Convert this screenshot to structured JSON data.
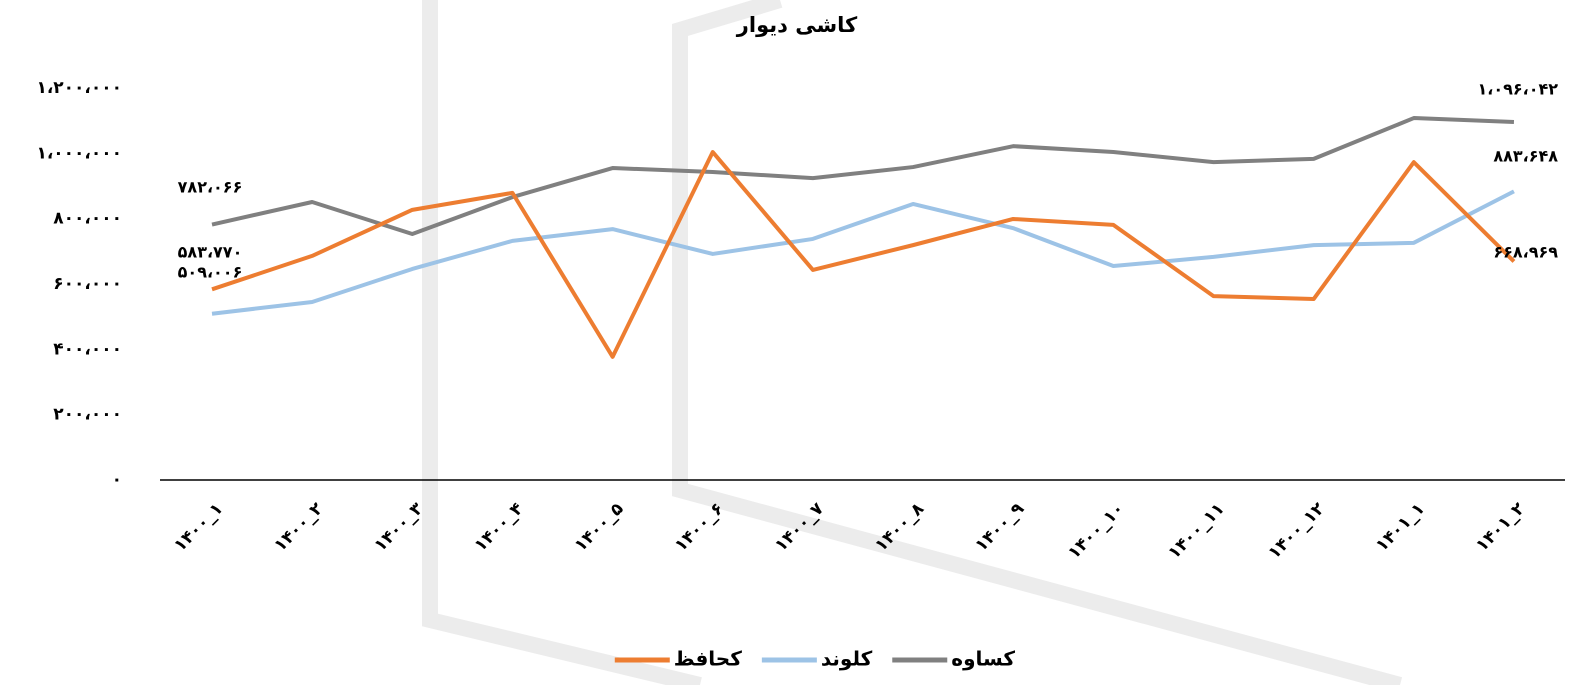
{
  "chart_data": {
    "type": "line",
    "title": "کاشی دیوار",
    "categories": [
      "۱۴۰۰_۱",
      "۱۴۰۰_۲",
      "۱۴۰۰_۳",
      "۱۴۰۰_۴",
      "۱۴۰۰_۵",
      "۱۴۰۰_۶",
      "۱۴۰۰_۷",
      "۱۴۰۰_۸",
      "۱۴۰۰_۹",
      "۱۴۰۰_۱۰",
      "۱۴۰۰_۱۱",
      "۱۴۰۰_۱۲",
      "۱۴۰۱_۱",
      "۱۴۰۱_۲"
    ],
    "series": [
      {
        "name": "کساوه",
        "color": "#808080",
        "values": [
          782066,
          851000,
          753000,
          866000,
          955000,
          943000,
          924000,
          958000,
          1022000,
          1004000,
          973000,
          983000,
          1108000,
          1096042
        ],
        "value_labels": [
          "۷۸۲،۰۶۶",
          null,
          null,
          null,
          null,
          null,
          null,
          null,
          null,
          null,
          null,
          null,
          null,
          "۱،۰۹۶،۰۴۲"
        ]
      },
      {
        "name": "کلوند",
        "color": "#9dc3e6",
        "values": [
          509006,
          545000,
          646000,
          732000,
          768000,
          692000,
          738000,
          845000,
          771000,
          655000,
          683000,
          719000,
          726000,
          883648
        ],
        "value_labels": [
          "۵۰۹،۰۰۶",
          null,
          null,
          null,
          null,
          null,
          null,
          null,
          null,
          null,
          null,
          null,
          null,
          "۸۸۳،۶۴۸"
        ]
      },
      {
        "name": "کحافظ",
        "color": "#ed7d31",
        "values": [
          583770,
          686000,
          827000,
          879000,
          377000,
          1004000,
          643000,
          719000,
          799000,
          781000,
          563000,
          554000,
          973000,
          668969
        ],
        "value_labels": [
          "۵۸۳،۷۷۰",
          null,
          null,
          null,
          null,
          null,
          null,
          null,
          null,
          null,
          null,
          null,
          null,
          "۶۶۸،۹۶۹"
        ]
      }
    ],
    "ylim": [
      0,
      1200000
    ],
    "yticks": [
      {
        "value": 0,
        "label": "۰"
      },
      {
        "value": 200000,
        "label": "۲۰۰،۰۰۰"
      },
      {
        "value": 400000,
        "label": "۴۰۰،۰۰۰"
      },
      {
        "value": 600000,
        "label": "۶۰۰،۰۰۰"
      },
      {
        "value": 800000,
        "label": "۸۰۰،۰۰۰"
      },
      {
        "value": 1000000,
        "label": "۱،۰۰۰،۰۰۰"
      },
      {
        "value": 1200000,
        "label": "۱،۲۰۰،۰۰۰"
      }
    ],
    "grid": false,
    "legend": "bottom"
  }
}
